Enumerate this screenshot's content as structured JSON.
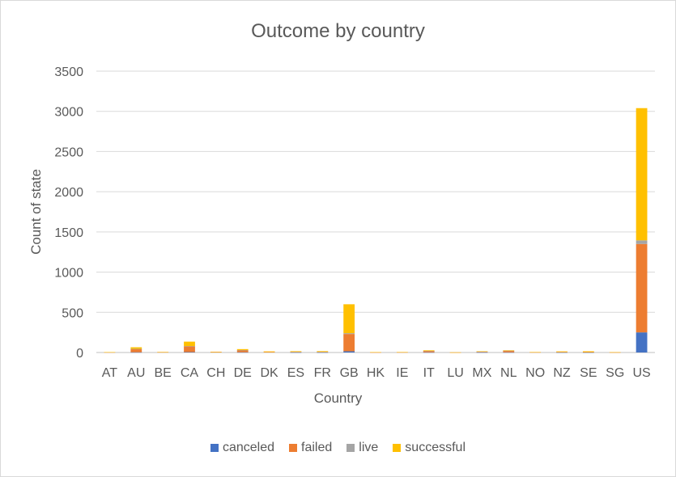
{
  "chart_data": {
    "type": "bar",
    "stacked": true,
    "title": "Outcome by country",
    "xlabel": "Country",
    "ylabel": "Count of state",
    "ylim": [
      0,
      3500
    ],
    "yticks": [
      0,
      500,
      1000,
      1500,
      2000,
      2500,
      3000,
      3500
    ],
    "grid": true,
    "legend_position": "bottom",
    "categories": [
      "AT",
      "AU",
      "BE",
      "CA",
      "CH",
      "DE",
      "DK",
      "ES",
      "FR",
      "GB",
      "HK",
      "IE",
      "IT",
      "LU",
      "MX",
      "NL",
      "NO",
      "NZ",
      "SE",
      "SG",
      "US"
    ],
    "series": [
      {
        "name": "canceled",
        "color": "#4472C4",
        "values": [
          0,
          3,
          0,
          5,
          0,
          3,
          0,
          1,
          1,
          15,
          0,
          0,
          2,
          0,
          2,
          2,
          0,
          1,
          1,
          0,
          250
        ]
      },
      {
        "name": "failed",
        "color": "#ED7D31",
        "values": [
          3,
          40,
          4,
          70,
          5,
          25,
          6,
          6,
          6,
          215,
          2,
          3,
          18,
          1,
          8,
          20,
          3,
          5,
          4,
          2,
          1100
        ]
      },
      {
        "name": "live",
        "color": "#A5A5A5",
        "values": [
          0,
          2,
          0,
          5,
          0,
          2,
          0,
          1,
          1,
          10,
          0,
          0,
          1,
          0,
          1,
          1,
          0,
          0,
          0,
          0,
          45
        ]
      },
      {
        "name": "successful",
        "color": "#FFC000",
        "values": [
          2,
          20,
          3,
          55,
          4,
          12,
          8,
          8,
          9,
          360,
          3,
          3,
          7,
          1,
          4,
          5,
          3,
          8,
          10,
          2,
          1645
        ]
      }
    ]
  }
}
